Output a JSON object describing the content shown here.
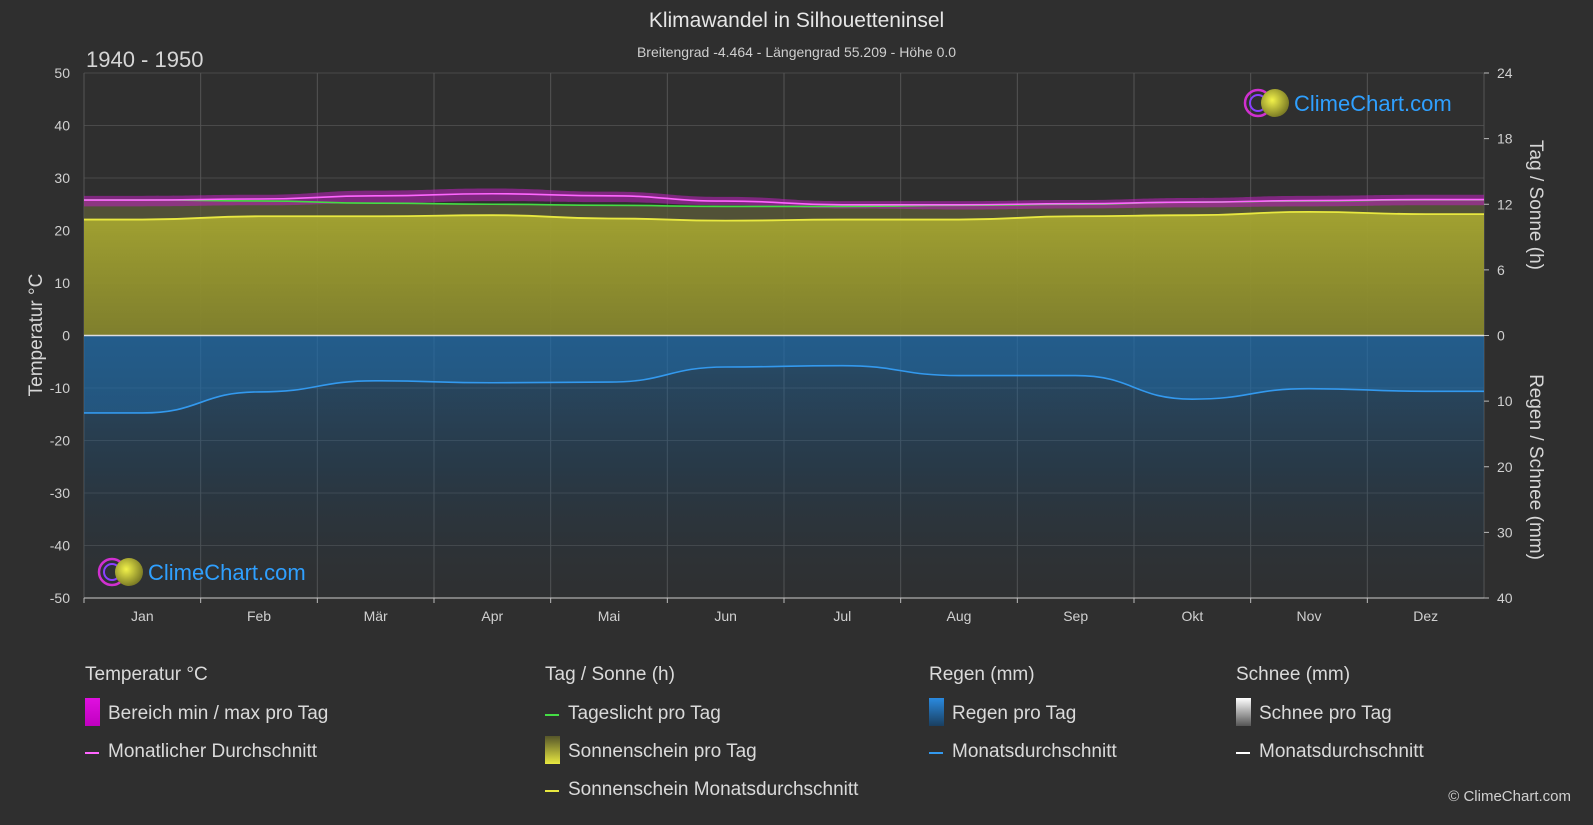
{
  "header": {
    "title": "Klimawandel in Silhouetteninsel",
    "subtitle": "Breitengrad -4.464 - Längengrad 55.209 - Höhe 0.0",
    "period": "1940 - 1950"
  },
  "watermark": {
    "text": "ClimeChart.com"
  },
  "copyright": "© ClimeChart.com",
  "colors": {
    "background": "#2f2f2f",
    "temp_range": "#e010e0",
    "temp_avg": "#ff66ff",
    "daylight": "#44dd44",
    "sunshine_fill": "#a8a82a",
    "sunshine_avg": "#e8e840",
    "rain_fill": "#1f6fb0",
    "rain_avg": "#3399ee",
    "snow": "#ffffff",
    "watermark_text": "#2fa0ff"
  },
  "legend": {
    "temperature": {
      "heading": "Temperatur °C",
      "range_label": "Bereich min / max pro Tag",
      "avg_label": "Monatlicher Durchschnitt"
    },
    "sun": {
      "heading": "Tag / Sonne (h)",
      "daylight_label": "Tageslicht pro Tag",
      "sunshine_label": "Sonnenschein pro Tag",
      "sunshine_avg_label": "Sonnenschein Monatsdurchschnitt"
    },
    "rain": {
      "heading": "Regen (mm)",
      "rain_label": "Regen pro Tag",
      "avg_label": "Monatsdurchschnitt"
    },
    "snow": {
      "heading": "Schnee (mm)",
      "snow_label": "Schnee pro Tag",
      "avg_label": "Monatsdurchschnitt"
    }
  },
  "chart_data": {
    "type": "line",
    "months": [
      "Jan",
      "Feb",
      "Mär",
      "Apr",
      "Mai",
      "Jun",
      "Jul",
      "Aug",
      "Sep",
      "Okt",
      "Nov",
      "Dez"
    ],
    "axes": {
      "left": {
        "label": "Temperatur °C",
        "min": -50,
        "max": 50,
        "ticks": [
          50,
          40,
          30,
          20,
          10,
          0,
          -10,
          -20,
          -30,
          -40,
          -50
        ]
      },
      "right_top": {
        "label": "Tag / Sonne (h)",
        "min": 0,
        "max": 24,
        "ticks": [
          24,
          18,
          12,
          6,
          0
        ]
      },
      "right_bottom": {
        "label": "Regen / Schnee (mm)",
        "min": 0,
        "max": 40,
        "ticks": [
          0,
          10,
          20,
          30,
          40
        ]
      }
    },
    "grid": true,
    "series": {
      "temp_max": [
        26.6,
        26.8,
        27.6,
        28.0,
        27.4,
        26.4,
        25.6,
        25.6,
        25.8,
        26.2,
        26.6,
        26.8
      ],
      "temp_min": [
        24.6,
        24.8,
        25.2,
        25.6,
        25.4,
        24.8,
        24.2,
        24.0,
        24.2,
        24.4,
        24.6,
        24.8
      ],
      "temp_avg": [
        25.8,
        26.0,
        26.6,
        27.0,
        26.6,
        25.6,
        24.9,
        24.9,
        25.1,
        25.4,
        25.7,
        25.9
      ],
      "daylight": [
        12.4,
        12.3,
        12.1,
        12.0,
        11.9,
        11.8,
        11.8,
        11.9,
        12.0,
        12.2,
        12.3,
        12.4
      ],
      "sunshine_avg": [
        10.6,
        10.9,
        10.9,
        11.0,
        10.7,
        10.5,
        10.6,
        10.6,
        10.9,
        11.0,
        11.3,
        11.1
      ],
      "rain_avg": [
        11.8,
        8.6,
        6.9,
        7.2,
        7.1,
        4.8,
        4.6,
        6.1,
        6.1,
        9.7,
        8.1,
        8.5
      ]
    }
  }
}
